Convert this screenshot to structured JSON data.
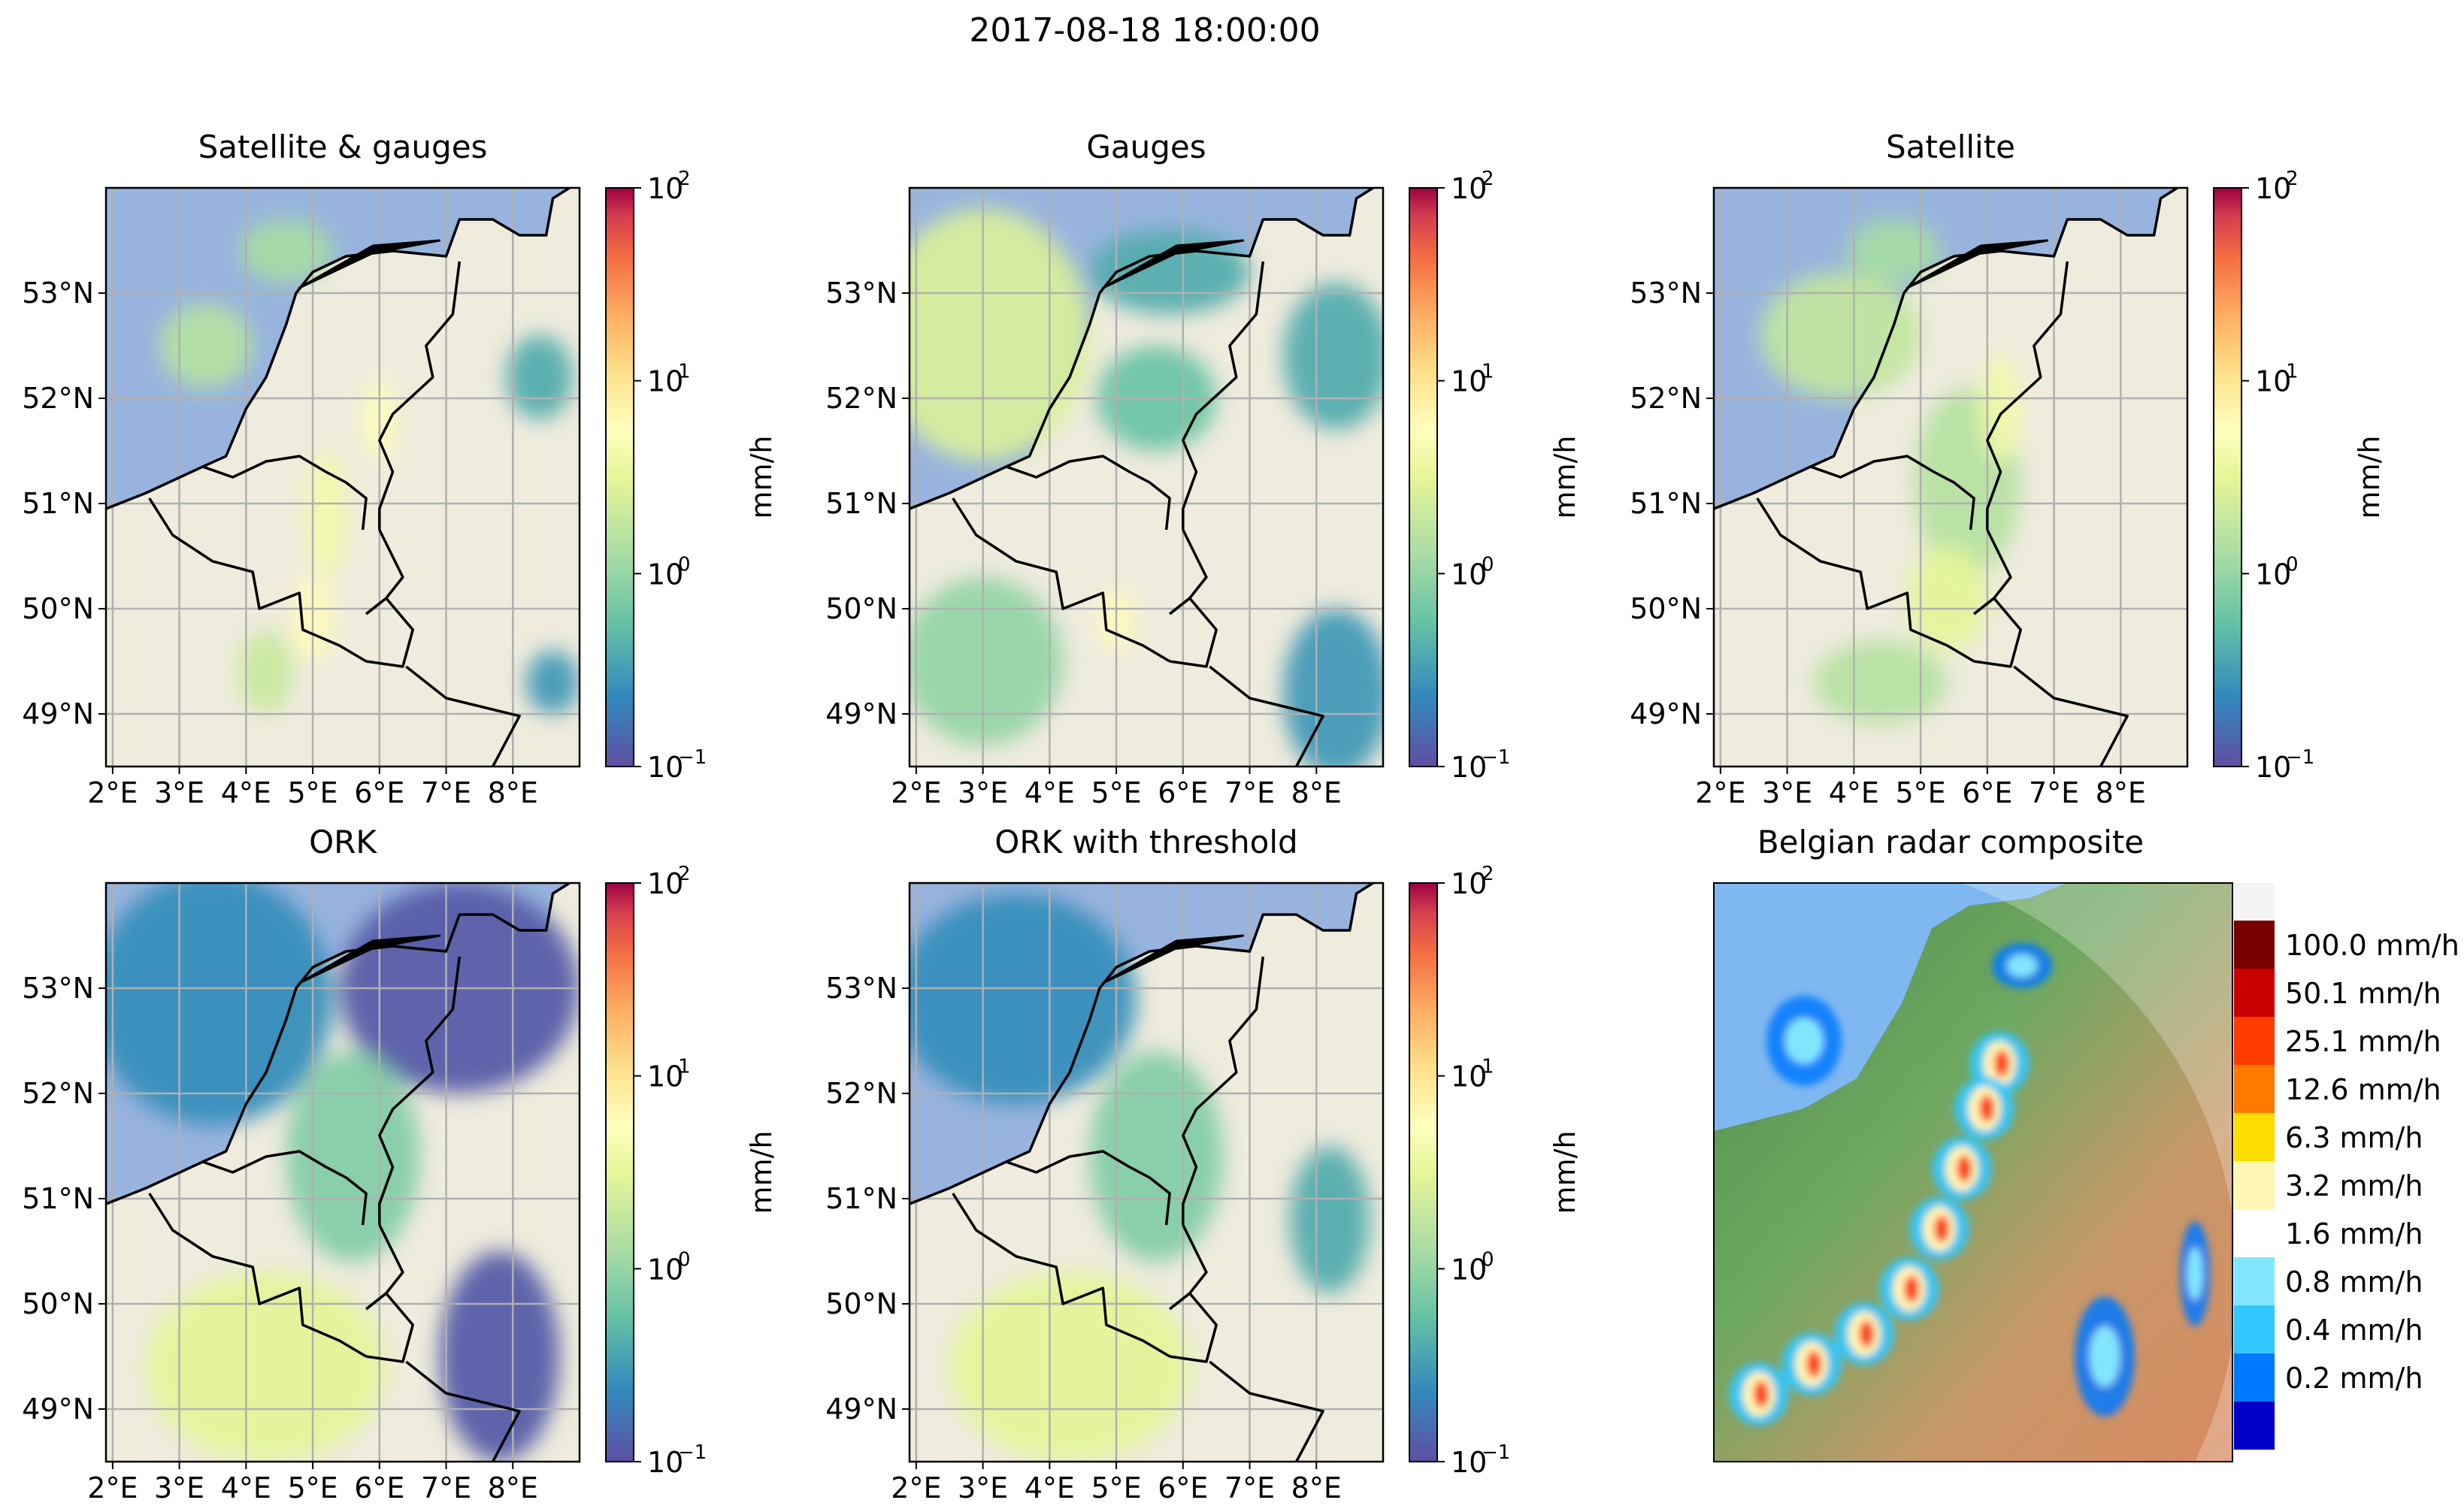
{
  "figure": {
    "suptitle": "2017-08-18 18:00:00",
    "colorbar_label": "mm/h"
  },
  "colors": {
    "ocean": "#98b4de",
    "land": "#efecdd",
    "grid": "#b0b0b0",
    "border": "#000000",
    "radar_sea": "#7fb8f0"
  },
  "chart_data": [
    {
      "type": "heatmap",
      "title": "Satellite & gauges",
      "xlabel": "",
      "ylabel": "",
      "x_ticks": [
        "2°E",
        "3°E",
        "4°E",
        "5°E",
        "6°E",
        "7°E",
        "8°E"
      ],
      "y_ticks": [
        "53°N",
        "52°N",
        "51°N",
        "50°N",
        "49°N"
      ],
      "xlim": [
        1.9,
        9.0
      ],
      "ylim": [
        48.5,
        54.0
      ],
      "grid": true,
      "colorbar": {
        "scale": "log",
        "range": [
          0.1,
          100
        ],
        "ticks": [
          "10",
          "10",
          "10",
          "10"
        ],
        "tick_exponents": [
          "2",
          "1",
          "0",
          "−1"
        ],
        "label": "mm/h"
      },
      "precip_cells": [
        {
          "lon": 3.4,
          "lat": 52.5,
          "rx": 0.7,
          "ry": 0.4,
          "mmh": 1.5
        },
        {
          "lon": 4.6,
          "lat": 53.4,
          "rx": 0.7,
          "ry": 0.3,
          "mmh": 1.2
        },
        {
          "lon": 5.2,
          "lat": 50.9,
          "rx": 0.3,
          "ry": 0.6,
          "mmh": 4.0
        },
        {
          "lon": 5.0,
          "lat": 49.9,
          "rx": 0.3,
          "ry": 0.4,
          "mmh": 6.0
        },
        {
          "lon": 6.0,
          "lat": 51.8,
          "rx": 0.25,
          "ry": 0.4,
          "mmh": 5.0
        },
        {
          "lon": 8.4,
          "lat": 52.2,
          "rx": 0.5,
          "ry": 0.4,
          "mmh": 0.4
        },
        {
          "lon": 8.6,
          "lat": 49.3,
          "rx": 0.4,
          "ry": 0.3,
          "mmh": 0.3
        },
        {
          "lon": 4.3,
          "lat": 49.4,
          "rx": 0.4,
          "ry": 0.4,
          "mmh": 2.0
        }
      ]
    },
    {
      "type": "heatmap",
      "title": "Gauges",
      "xlabel": "",
      "ylabel": "",
      "x_ticks": [
        "2°E",
        "3°E",
        "4°E",
        "5°E",
        "6°E",
        "7°E",
        "8°E"
      ],
      "y_ticks": [
        "53°N",
        "52°N",
        "51°N",
        "50°N",
        "49°N"
      ],
      "xlim": [
        1.9,
        9.0
      ],
      "ylim": [
        48.5,
        54.0
      ],
      "grid": true,
      "colorbar": {
        "scale": "log",
        "range": [
          0.1,
          100
        ],
        "ticks": [
          "10",
          "10",
          "10",
          "10"
        ],
        "tick_exponents": [
          "2",
          "1",
          "0",
          "−1"
        ],
        "label": "mm/h"
      },
      "precip_cells": [
        {
          "lon": 3.0,
          "lat": 52.6,
          "rx": 1.6,
          "ry": 1.2,
          "mmh": 2.5
        },
        {
          "lon": 5.8,
          "lat": 53.2,
          "rx": 1.2,
          "ry": 0.4,
          "mmh": 0.4
        },
        {
          "lon": 5.6,
          "lat": 52.0,
          "rx": 0.9,
          "ry": 0.5,
          "mmh": 0.6
        },
        {
          "lon": 8.3,
          "lat": 52.4,
          "rx": 0.8,
          "ry": 0.7,
          "mmh": 0.4
        },
        {
          "lon": 3.0,
          "lat": 49.5,
          "rx": 1.2,
          "ry": 0.8,
          "mmh": 1.0
        },
        {
          "lon": 5.0,
          "lat": 49.9,
          "rx": 0.25,
          "ry": 0.3,
          "mmh": 6.0
        },
        {
          "lon": 8.3,
          "lat": 49.2,
          "rx": 0.8,
          "ry": 0.8,
          "mmh": 0.3
        }
      ]
    },
    {
      "type": "heatmap",
      "title": "Satellite",
      "xlabel": "",
      "ylabel": "mm/h",
      "x_ticks": [
        "2°E",
        "3°E",
        "4°E",
        "5°E",
        "6°E",
        "7°E",
        "8°E"
      ],
      "y_ticks": [
        "53°N",
        "52°N",
        "51°N",
        "50°N",
        "49°N"
      ],
      "xlim": [
        1.9,
        9.0
      ],
      "ylim": [
        48.5,
        54.0
      ],
      "grid": true,
      "colorbar": {
        "scale": "log",
        "range": [
          0.1,
          100
        ],
        "ticks": [
          "10",
          "10",
          "10",
          "10"
        ],
        "tick_exponents": [
          "2",
          "1",
          "0",
          "−1"
        ],
        "label": "mm/h"
      },
      "precip_cells": [
        {
          "lon": 3.8,
          "lat": 52.6,
          "rx": 1.2,
          "ry": 0.6,
          "mmh": 1.8
        },
        {
          "lon": 4.6,
          "lat": 53.4,
          "rx": 0.7,
          "ry": 0.3,
          "mmh": 1.2
        },
        {
          "lon": 5.7,
          "lat": 51.2,
          "rx": 0.8,
          "ry": 0.9,
          "mmh": 1.5
        },
        {
          "lon": 5.4,
          "lat": 50.1,
          "rx": 0.6,
          "ry": 0.5,
          "mmh": 3.0
        },
        {
          "lon": 4.4,
          "lat": 49.3,
          "rx": 1.0,
          "ry": 0.4,
          "mmh": 1.5
        },
        {
          "lon": 6.2,
          "lat": 51.9,
          "rx": 0.3,
          "ry": 0.5,
          "mmh": 4.0
        }
      ]
    },
    {
      "type": "heatmap",
      "title": "ORK",
      "xlabel": "",
      "ylabel": "mm/h",
      "x_ticks": [
        "2°E",
        "3°E",
        "4°E",
        "5°E",
        "6°E",
        "7°E",
        "8°E"
      ],
      "y_ticks": [
        "53°N",
        "52°N",
        "51°N",
        "50°N",
        "49°N"
      ],
      "xlim": [
        1.9,
        9.0
      ],
      "ylim": [
        48.5,
        54.0
      ],
      "grid": true,
      "colorbar": {
        "scale": "log",
        "range": [
          0.1,
          100
        ],
        "ticks": [
          "10",
          "10",
          "10",
          "10"
        ],
        "tick_exponents": [
          "2",
          "1",
          "0",
          "−1"
        ],
        "label": "mm/h"
      },
      "precip_cells": [
        {
          "lon": 3.5,
          "lat": 52.9,
          "rx": 1.8,
          "ry": 1.2,
          "mmh": 0.25
        },
        {
          "lon": 7.2,
          "lat": 53.0,
          "rx": 1.8,
          "ry": 1.0,
          "mmh": 0.12
        },
        {
          "lon": 5.6,
          "lat": 51.4,
          "rx": 1.0,
          "ry": 1.0,
          "mmh": 0.8
        },
        {
          "lon": 4.3,
          "lat": 49.4,
          "rx": 1.8,
          "ry": 0.9,
          "mmh": 3.0
        },
        {
          "lon": 7.8,
          "lat": 49.5,
          "rx": 0.9,
          "ry": 1.0,
          "mmh": 0.12
        }
      ]
    },
    {
      "type": "heatmap",
      "title": "ORK with threshold",
      "xlabel": "",
      "ylabel": "mm/h",
      "x_ticks": [
        "2°E",
        "3°E",
        "4°E",
        "5°E",
        "6°E",
        "7°E",
        "8°E"
      ],
      "y_ticks": [
        "53°N",
        "52°N",
        "51°N",
        "50°N",
        "49°N"
      ],
      "xlim": [
        1.9,
        9.0
      ],
      "ylim": [
        48.5,
        54.0
      ],
      "grid": true,
      "colorbar": {
        "scale": "log",
        "range": [
          0.1,
          100
        ],
        "ticks": [
          "10",
          "10",
          "10",
          "10"
        ],
        "tick_exponents": [
          "2",
          "1",
          "0",
          "−1"
        ],
        "label": "mm/h"
      },
      "precip_cells": [
        {
          "lon": 3.5,
          "lat": 52.9,
          "rx": 1.8,
          "ry": 1.0,
          "mmh": 0.25
        },
        {
          "lon": 5.6,
          "lat": 51.4,
          "rx": 1.0,
          "ry": 1.0,
          "mmh": 0.8
        },
        {
          "lon": 4.3,
          "lat": 49.4,
          "rx": 1.8,
          "ry": 0.9,
          "mmh": 3.0
        },
        {
          "lon": 8.2,
          "lat": 50.8,
          "rx": 0.6,
          "ry": 0.7,
          "mmh": 0.4
        }
      ]
    },
    {
      "type": "heatmap",
      "title": "Belgian radar composite",
      "legend": [
        {
          "label": "100.0 mm/h",
          "color": "#7a0000"
        },
        {
          "label": "50.1 mm/h",
          "color": "#c80000"
        },
        {
          "label": "25.1 mm/h",
          "color": "#ff3c00"
        },
        {
          "label": "12.6 mm/h",
          "color": "#ff7800"
        },
        {
          "label": "6.3 mm/h",
          "color": "#ffdc00"
        },
        {
          "label": "3.2 mm/h",
          "color": "#fff6b4"
        },
        {
          "label": "1.6 mm/h",
          "color": "#ffffff"
        },
        {
          "label": "0.8 mm/h",
          "color": "#82e6ff"
        },
        {
          "label": "0.4 mm/h",
          "color": "#32c8ff"
        },
        {
          "label": "0.2 mm/h",
          "color": "#0078ff"
        },
        {
          "label": "",
          "color": "#0000c8"
        }
      ]
    }
  ]
}
